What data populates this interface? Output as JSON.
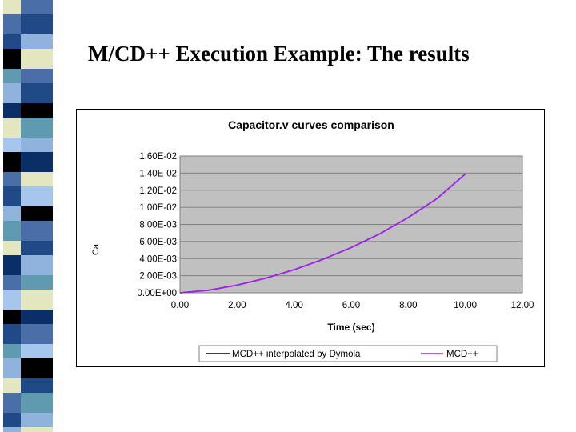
{
  "slide": {
    "title": "M/CD++ Execution Example: The results"
  },
  "colors": {
    "plot_background": "#c0c0c0",
    "gridline": "#808080",
    "series_interpolated": "#000000",
    "series_mcd": "#a020f0",
    "stripe_palette": [
      "#4a6ea8",
      "#1f4a86",
      "#8fb3dd",
      "#e4e6c0",
      "#000000",
      "#5f9bb0",
      "#0a2f66",
      "#a7c6ee"
    ]
  },
  "chart_data": {
    "type": "line",
    "title": "Capacitor.v curves comparison",
    "xlabel": "Time (sec)",
    "ylabel": "Ca",
    "xlim": [
      0,
      12
    ],
    "ylim": [
      0,
      0.016
    ],
    "x_ticks": [
      "0.00",
      "2.00",
      "4.00",
      "6.00",
      "8.00",
      "10.00",
      "12.00"
    ],
    "y_ticks": [
      "0.00E+00",
      "2.00E-03",
      "4.00E-03",
      "6.00E-03",
      "8.00E-03",
      "1.00E-02",
      "1.20E-02",
      "1.40E-02",
      "1.60E-02"
    ],
    "grid": "horizontal",
    "legend_position": "bottom",
    "series": [
      {
        "name": "MCD++ interpolated by Dymola",
        "x": [
          0,
          1,
          2,
          3,
          4,
          5,
          6,
          7,
          8,
          9,
          10
        ],
        "y": [
          0,
          0.0003,
          0.0009,
          0.0017,
          0.0027,
          0.0039,
          0.0053,
          0.0069,
          0.0088,
          0.011,
          0.0139
        ]
      },
      {
        "name": "MCD++",
        "x": [
          0,
          1,
          2,
          3,
          4,
          5,
          6,
          7,
          8,
          9,
          10
        ],
        "y": [
          0,
          0.0003,
          0.0009,
          0.0017,
          0.0027,
          0.0039,
          0.0053,
          0.0069,
          0.0088,
          0.011,
          0.0139
        ]
      }
    ]
  }
}
